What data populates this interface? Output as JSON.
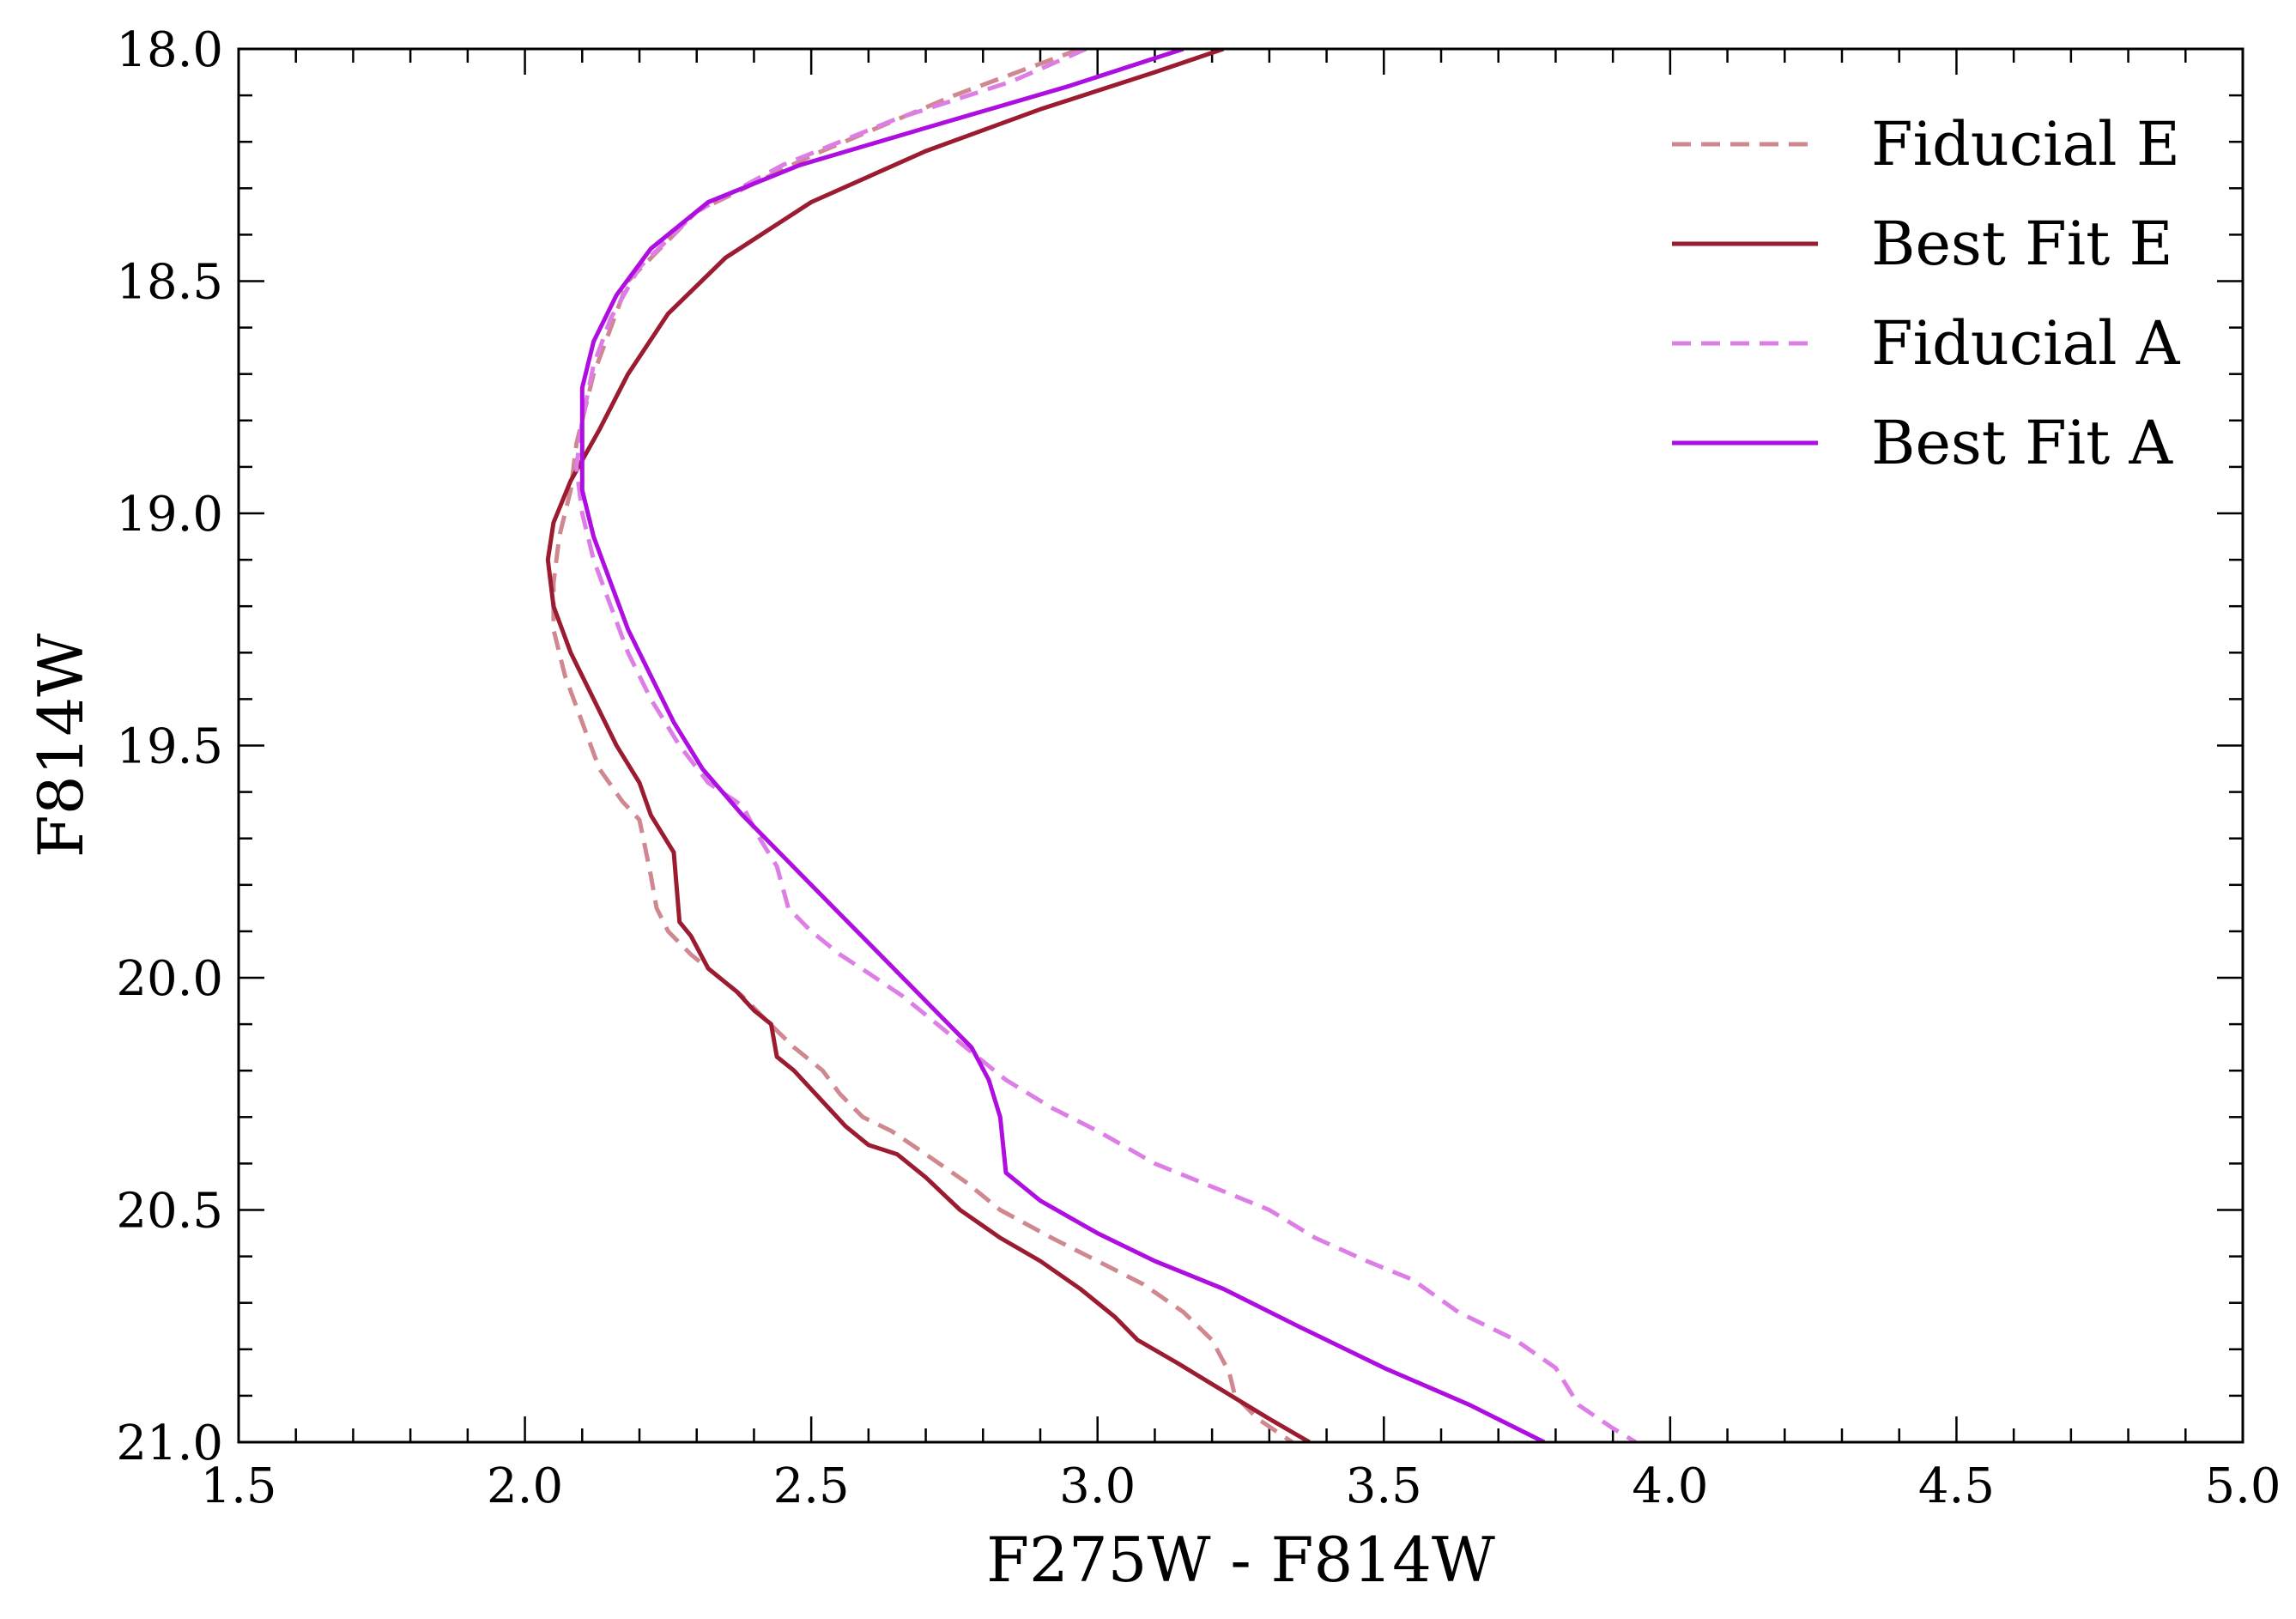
{
  "chart_data": {
    "type": "line",
    "title": "",
    "xlabel": "F275W - F814W",
    "ylabel": "F814W",
    "xlim": [
      1.5,
      5.0
    ],
    "ylim": [
      21.0,
      18.0
    ],
    "y_inverted": true,
    "xticks": [
      "1.5",
      "2.0",
      "2.5",
      "3.0",
      "3.5",
      "4.0",
      "4.5",
      "5.0"
    ],
    "yticks": [
      "18.0",
      "18.5",
      "19.0",
      "19.5",
      "20.0",
      "20.5",
      "21.0"
    ],
    "grid": false,
    "legend_position": "top-right",
    "series": [
      {
        "name": "Fiducial E",
        "color": "#d08890",
        "dash": true,
        "points": [
          [
            2.97,
            18.0
          ],
          [
            2.75,
            18.1
          ],
          [
            2.5,
            18.23
          ],
          [
            2.3,
            18.35
          ],
          [
            2.18,
            18.5
          ],
          [
            2.12,
            18.7
          ],
          [
            2.09,
            18.85
          ],
          [
            2.08,
            18.95
          ],
          [
            2.06,
            19.05
          ],
          [
            2.05,
            19.15
          ],
          [
            2.05,
            19.25
          ],
          [
            2.07,
            19.35
          ],
          [
            2.1,
            19.45
          ],
          [
            2.13,
            19.55
          ],
          [
            2.17,
            19.62
          ],
          [
            2.2,
            19.66
          ],
          [
            2.21,
            19.72
          ],
          [
            2.22,
            19.78
          ],
          [
            2.23,
            19.85
          ],
          [
            2.25,
            19.9
          ],
          [
            2.29,
            19.95
          ],
          [
            2.34,
            20.0
          ],
          [
            2.38,
            20.04
          ],
          [
            2.42,
            20.09
          ],
          [
            2.47,
            20.15
          ],
          [
            2.52,
            20.2
          ],
          [
            2.55,
            20.25
          ],
          [
            2.59,
            20.3
          ],
          [
            2.64,
            20.33
          ],
          [
            2.7,
            20.38
          ],
          [
            2.77,
            20.44
          ],
          [
            2.83,
            20.5
          ],
          [
            2.92,
            20.56
          ],
          [
            3.0,
            20.61
          ],
          [
            3.08,
            20.66
          ],
          [
            3.15,
            20.72
          ],
          [
            3.2,
            20.78
          ],
          [
            3.23,
            20.85
          ],
          [
            3.24,
            20.9
          ],
          [
            3.28,
            20.95
          ],
          [
            3.34,
            21.0
          ]
        ]
      },
      {
        "name": "Best Fit E",
        "color": "#9b1b30",
        "dash": false,
        "points": [
          [
            3.22,
            18.0
          ],
          [
            3.1,
            18.05
          ],
          [
            2.9,
            18.13
          ],
          [
            2.7,
            18.22
          ],
          [
            2.5,
            18.33
          ],
          [
            2.35,
            18.45
          ],
          [
            2.25,
            18.57
          ],
          [
            2.18,
            18.7
          ],
          [
            2.13,
            18.82
          ],
          [
            2.08,
            18.93
          ],
          [
            2.05,
            19.02
          ],
          [
            2.04,
            19.1
          ],
          [
            2.05,
            19.2
          ],
          [
            2.08,
            19.3
          ],
          [
            2.12,
            19.4
          ],
          [
            2.16,
            19.5
          ],
          [
            2.2,
            19.58
          ],
          [
            2.22,
            19.65
          ],
          [
            2.26,
            19.73
          ],
          [
            2.27,
            19.88
          ],
          [
            2.29,
            19.91
          ],
          [
            2.32,
            19.98
          ],
          [
            2.37,
            20.03
          ],
          [
            2.4,
            20.07
          ],
          [
            2.43,
            20.1
          ],
          [
            2.44,
            20.17
          ],
          [
            2.47,
            20.2
          ],
          [
            2.5,
            20.24
          ],
          [
            2.53,
            20.28
          ],
          [
            2.56,
            20.32
          ],
          [
            2.6,
            20.36
          ],
          [
            2.65,
            20.38
          ],
          [
            2.7,
            20.43
          ],
          [
            2.76,
            20.5
          ],
          [
            2.83,
            20.56
          ],
          [
            2.9,
            20.61
          ],
          [
            2.97,
            20.67
          ],
          [
            3.03,
            20.73
          ],
          [
            3.07,
            20.78
          ],
          [
            3.14,
            20.83
          ],
          [
            3.22,
            20.89
          ],
          [
            3.3,
            20.95
          ],
          [
            3.37,
            21.0
          ]
        ]
      },
      {
        "name": "Fiducial A",
        "color": "#dd7ee6",
        "dash": true,
        "points": [
          [
            2.98,
            18.0
          ],
          [
            2.85,
            18.07
          ],
          [
            2.65,
            18.15
          ],
          [
            2.45,
            18.25
          ],
          [
            2.3,
            18.35
          ],
          [
            2.2,
            18.47
          ],
          [
            2.15,
            18.58
          ],
          [
            2.12,
            18.68
          ],
          [
            2.1,
            18.8
          ],
          [
            2.09,
            18.9
          ],
          [
            2.1,
            19.0
          ],
          [
            2.12,
            19.1
          ],
          [
            2.15,
            19.2
          ],
          [
            2.18,
            19.3
          ],
          [
            2.22,
            19.4
          ],
          [
            2.27,
            19.5
          ],
          [
            2.32,
            19.58
          ],
          [
            2.38,
            19.63
          ],
          [
            2.41,
            19.7
          ],
          [
            2.44,
            19.76
          ],
          [
            2.46,
            19.85
          ],
          [
            2.5,
            19.9
          ],
          [
            2.55,
            19.95
          ],
          [
            2.6,
            19.99
          ],
          [
            2.66,
            20.04
          ],
          [
            2.72,
            20.1
          ],
          [
            2.78,
            20.16
          ],
          [
            2.84,
            20.22
          ],
          [
            2.92,
            20.28
          ],
          [
            3.0,
            20.33
          ],
          [
            3.1,
            20.4
          ],
          [
            3.2,
            20.45
          ],
          [
            3.3,
            20.5
          ],
          [
            3.38,
            20.56
          ],
          [
            3.47,
            20.61
          ],
          [
            3.55,
            20.65
          ],
          [
            3.63,
            20.72
          ],
          [
            3.73,
            20.78
          ],
          [
            3.8,
            20.84
          ],
          [
            3.84,
            20.92
          ],
          [
            3.9,
            20.97
          ],
          [
            3.94,
            21.0
          ]
        ]
      },
      {
        "name": "Best Fit A",
        "color": "#ae0ee0",
        "dash": false,
        "points": [
          [
            3.15,
            18.0
          ],
          [
            2.95,
            18.08
          ],
          [
            2.7,
            18.17
          ],
          [
            2.48,
            18.25
          ],
          [
            2.32,
            18.33
          ],
          [
            2.22,
            18.43
          ],
          [
            2.16,
            18.53
          ],
          [
            2.12,
            18.63
          ],
          [
            2.1,
            18.73
          ],
          [
            2.1,
            18.85
          ],
          [
            2.1,
            18.95
          ],
          [
            2.12,
            19.05
          ],
          [
            2.15,
            19.15
          ],
          [
            2.18,
            19.25
          ],
          [
            2.22,
            19.35
          ],
          [
            2.26,
            19.45
          ],
          [
            2.31,
            19.55
          ],
          [
            2.38,
            19.65
          ],
          [
            2.46,
            19.75
          ],
          [
            2.54,
            19.85
          ],
          [
            2.62,
            19.95
          ],
          [
            2.7,
            20.05
          ],
          [
            2.78,
            20.15
          ],
          [
            2.81,
            20.22
          ],
          [
            2.83,
            20.3
          ],
          [
            2.84,
            20.42
          ],
          [
            2.9,
            20.48
          ],
          [
            3.0,
            20.55
          ],
          [
            3.1,
            20.61
          ],
          [
            3.22,
            20.67
          ],
          [
            3.35,
            20.75
          ],
          [
            3.5,
            20.84
          ],
          [
            3.65,
            20.92
          ],
          [
            3.78,
            21.0
          ]
        ]
      }
    ]
  }
}
